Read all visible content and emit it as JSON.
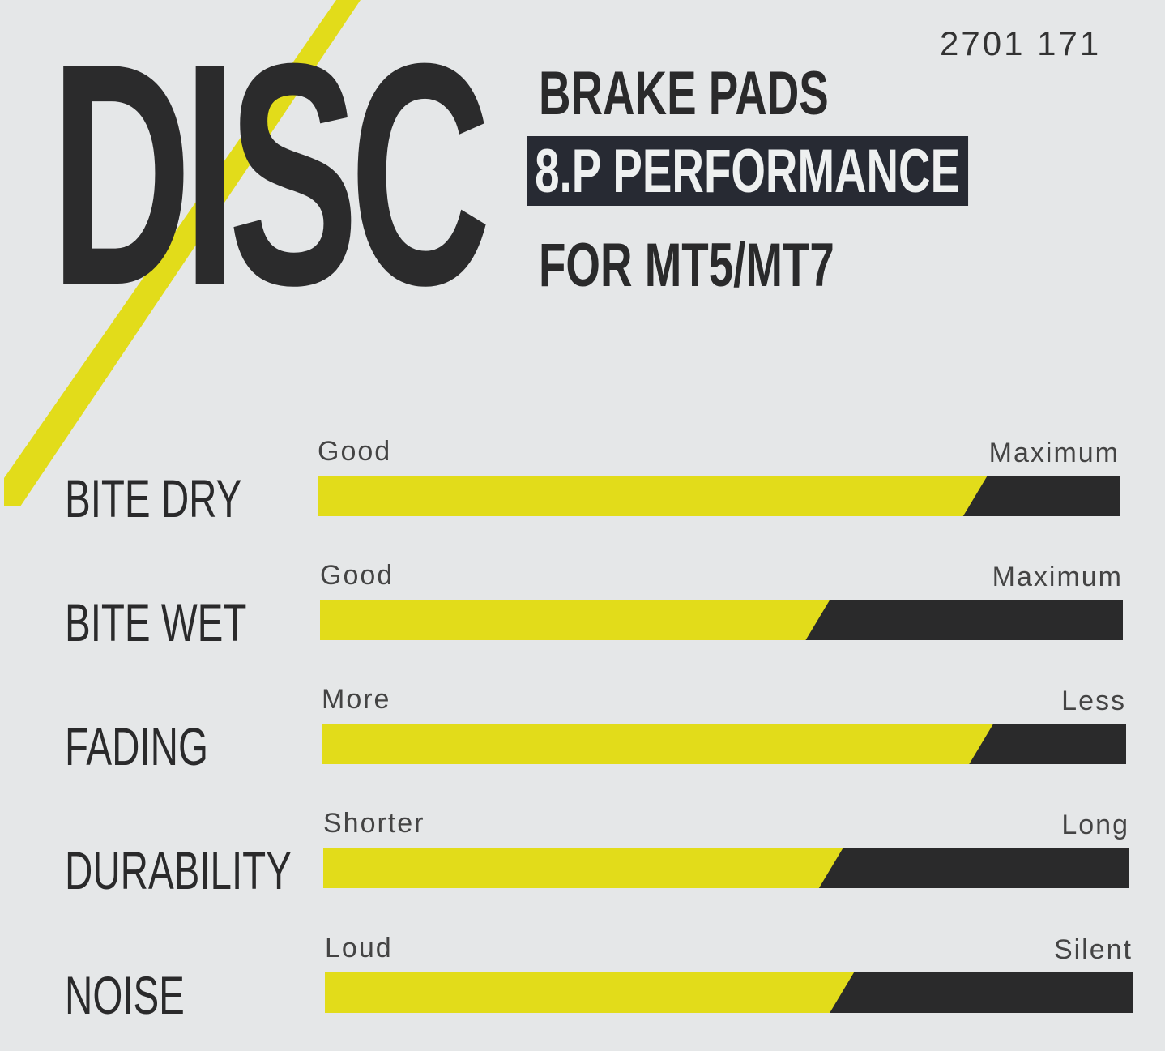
{
  "product_code": "2701 171",
  "brand_word": "DISC",
  "subtitle_lines": [
    "BRAKE PADS",
    "8.P PERFORMANCE",
    "FOR MT5/MT7"
  ],
  "colors": {
    "yellow": "#e2dc1a",
    "dark": "#2a2a2b",
    "background": "#e5e7e8",
    "badge": "#272a33"
  },
  "ratings": [
    {
      "label": "BITE DRY",
      "low": "Good",
      "high": "Maximum",
      "value": 0.82
    },
    {
      "label": "BITE WET",
      "low": "Good",
      "high": "Maximum",
      "value": 0.62
    },
    {
      "label": "FADING",
      "low": "More",
      "high": "Less",
      "value": 0.82
    },
    {
      "label": "DURABILITY",
      "low": "Shorter",
      "high": "Long",
      "value": 0.63
    },
    {
      "label": "NOISE",
      "low": "Loud",
      "high": "Silent",
      "value": 0.64
    }
  ]
}
